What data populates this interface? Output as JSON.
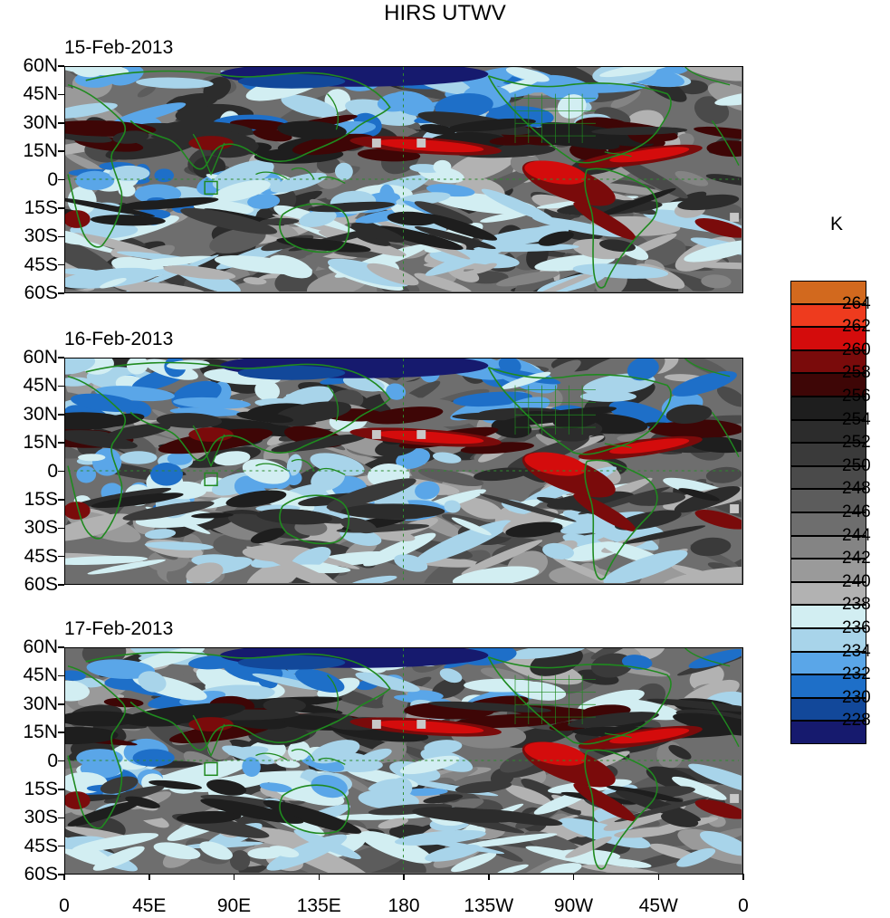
{
  "title": "HIRS UTWV",
  "units": "K",
  "panels": [
    {
      "date": "15-Feb-2013"
    },
    {
      "date": "16-Feb-2013"
    },
    {
      "date": "17-Feb-2013"
    }
  ],
  "y_ticks": [
    "60N",
    "45N",
    "30N",
    "15N",
    "0",
    "15S",
    "30S",
    "45S",
    "60S"
  ],
  "x_ticks": [
    "0",
    "45E",
    "90E",
    "135E",
    "180",
    "135W",
    "90W",
    "45W",
    "0"
  ],
  "colorbar": {
    "labels": [
      "264",
      "262",
      "260",
      "258",
      "256",
      "254",
      "252",
      "250",
      "248",
      "246",
      "244",
      "242",
      "240",
      "238",
      "236",
      "234",
      "232",
      "230",
      "228"
    ],
    "colors": [
      "#d2691e",
      "#ee3b1e",
      "#d40c0c",
      "#7a0b0b",
      "#3e0606",
      "#1e1e1e",
      "#2c2c2c",
      "#3a3a3a",
      "#4a4a4a",
      "#5c5c5c",
      "#6e6e6e",
      "#848484",
      "#9a9a9a",
      "#b2b2b2",
      "#d2eef2",
      "#a8d4ea",
      "#5aa6e8",
      "#1e6fc8",
      "#12489a",
      "#161a6e"
    ]
  }
}
